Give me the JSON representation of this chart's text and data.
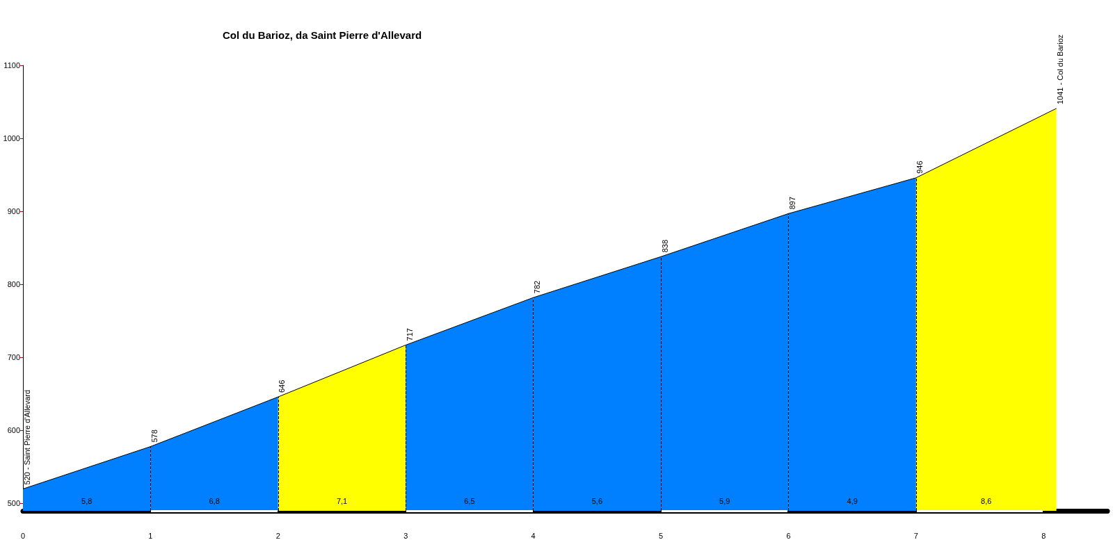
{
  "chart_data": {
    "type": "area",
    "title": "Col du Barioz, da Saint Pierre d'Allevard",
    "xlim": [
      0,
      8.5
    ],
    "xticks": [
      0,
      1,
      2,
      3,
      4,
      5,
      6,
      7,
      8
    ],
    "ylim": [
      490,
      1100
    ],
    "yticks": [
      500,
      600,
      700,
      800,
      900,
      1000,
      1100
    ],
    "grid": false,
    "series": [
      {
        "color": "#0080ff",
        "x": [
          0,
          1
        ],
        "values": [
          520,
          578
        ],
        "value_labels": [
          "520 - Saint Pierre d'Allevard",
          "578"
        ]
      },
      {
        "color": "#0080ff",
        "x": [
          1,
          2
        ],
        "values": [
          578,
          646
        ],
        "value_labels": [
          null,
          "646"
        ]
      },
      {
        "color": "#ffff00",
        "x": [
          2,
          3
        ],
        "values": [
          646,
          717
        ],
        "value_labels": [
          null,
          "717"
        ]
      },
      {
        "color": "#0080ff",
        "x": [
          3,
          4
        ],
        "values": [
          717,
          782
        ],
        "value_labels": [
          null,
          "782"
        ]
      },
      {
        "color": "#0080ff",
        "x": [
          4,
          5
        ],
        "values": [
          782,
          838
        ],
        "value_labels": [
          null,
          "838"
        ]
      },
      {
        "color": "#0080ff",
        "x": [
          5,
          6
        ],
        "values": [
          838,
          897
        ],
        "value_labels": [
          null,
          "897"
        ]
      },
      {
        "color": "#0080ff",
        "x": [
          6,
          7
        ],
        "values": [
          897,
          946
        ],
        "value_labels": [
          null,
          "946"
        ]
      },
      {
        "color": "#ffff00",
        "x": [
          7,
          8.1
        ],
        "values": [
          946,
          1041
        ],
        "value_labels": [
          null,
          "1041 - Col du Barioz"
        ]
      }
    ],
    "ref_lines": [
      {
        "axis": "x",
        "value": 1,
        "line_style": "dashed",
        "color": "#000000"
      },
      {
        "axis": "x",
        "value": 2,
        "line_style": "dashed",
        "color": "#000000"
      },
      {
        "axis": "x",
        "value": 3,
        "line_style": "dashed",
        "color": "#000000"
      },
      {
        "axis": "x",
        "value": 4,
        "line_style": "dashed",
        "color": "#000000"
      },
      {
        "axis": "x",
        "value": 5,
        "line_style": "dashed",
        "color": "#000000"
      },
      {
        "axis": "x",
        "value": 6,
        "line_style": "dashed",
        "color": "#000000"
      },
      {
        "axis": "x",
        "value": 7,
        "line_style": "dashed",
        "color": "#000000"
      }
    ],
    "annotations": [
      "5,8",
      "6,8",
      "7,1",
      "6,5",
      "5,6",
      "5,9",
      "4,9",
      "8,6"
    ]
  }
}
